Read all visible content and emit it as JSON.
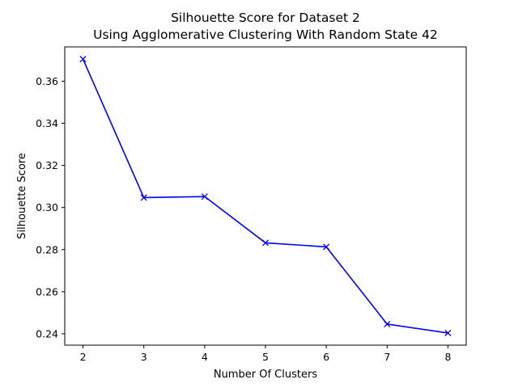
{
  "chart_data": {
    "type": "line",
    "title_lines": [
      "Silhouette Score for Dataset 2",
      "Using Agglomerative Clustering With Random State 42"
    ],
    "xlabel": "Number Of Clusters",
    "ylabel": "Silhouette Score",
    "x": [
      2,
      3,
      4,
      5,
      6,
      7,
      8
    ],
    "series": [
      {
        "values": [
          0.3705,
          0.3047,
          0.3052,
          0.2832,
          0.2813,
          0.2446,
          0.2404
        ],
        "color": "#0000ff",
        "marker": "x"
      }
    ],
    "xlim": [
      1.7,
      8.3
    ],
    "ylim": [
      0.2346,
      0.3763
    ],
    "x_ticks": [
      2,
      3,
      4,
      5,
      6,
      7,
      8
    ],
    "y_ticks": [
      0.24,
      0.26,
      0.28,
      0.3,
      0.32,
      0.34,
      0.36
    ],
    "y_tick_labels": [
      "0.24",
      "0.26",
      "0.28",
      "0.30",
      "0.32",
      "0.34",
      "0.36"
    ],
    "grid": false,
    "legend": "none"
  }
}
